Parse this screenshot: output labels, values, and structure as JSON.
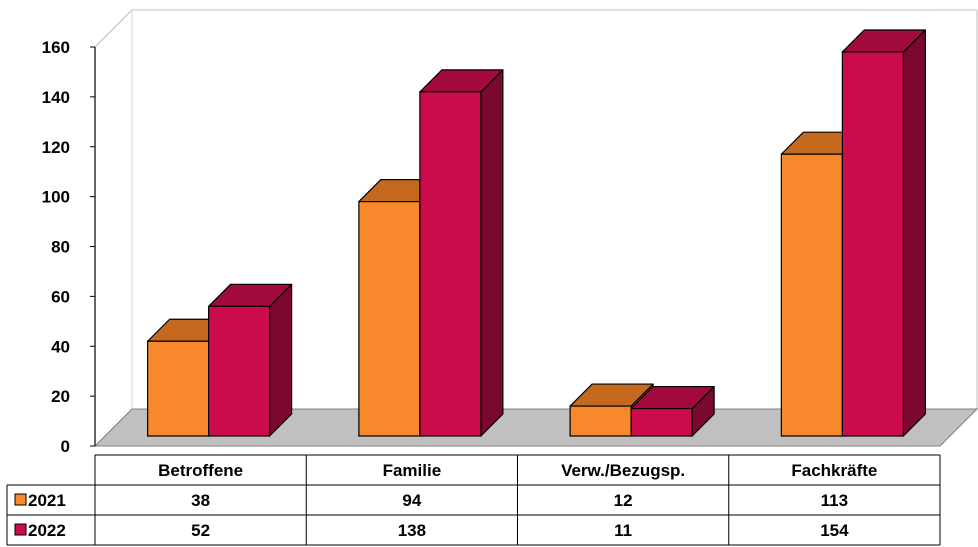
{
  "chart_data": {
    "type": "bar",
    "style": "3d-column-with-data-table",
    "categories": [
      "Betroffene",
      "Familie",
      "Verw./Bezugsp.",
      "Fachkräfte"
    ],
    "series": [
      {
        "name": "2021",
        "values": [
          38,
          94,
          12,
          113
        ],
        "color": "#f7882b",
        "side_color": "#bd6620",
        "top_color": "#c5691e"
      },
      {
        "name": "2022",
        "values": [
          52,
          138,
          11,
          154
        ],
        "color": "#cc0c4a",
        "side_color": "#7a0831",
        "top_color": "#a20a3d"
      }
    ],
    "ylim": [
      0,
      160
    ],
    "yticks": [
      0,
      20,
      40,
      60,
      80,
      100,
      120,
      140,
      160
    ],
    "floor_color": "#c0c0c0",
    "legend_placement": "data-table-rows"
  }
}
